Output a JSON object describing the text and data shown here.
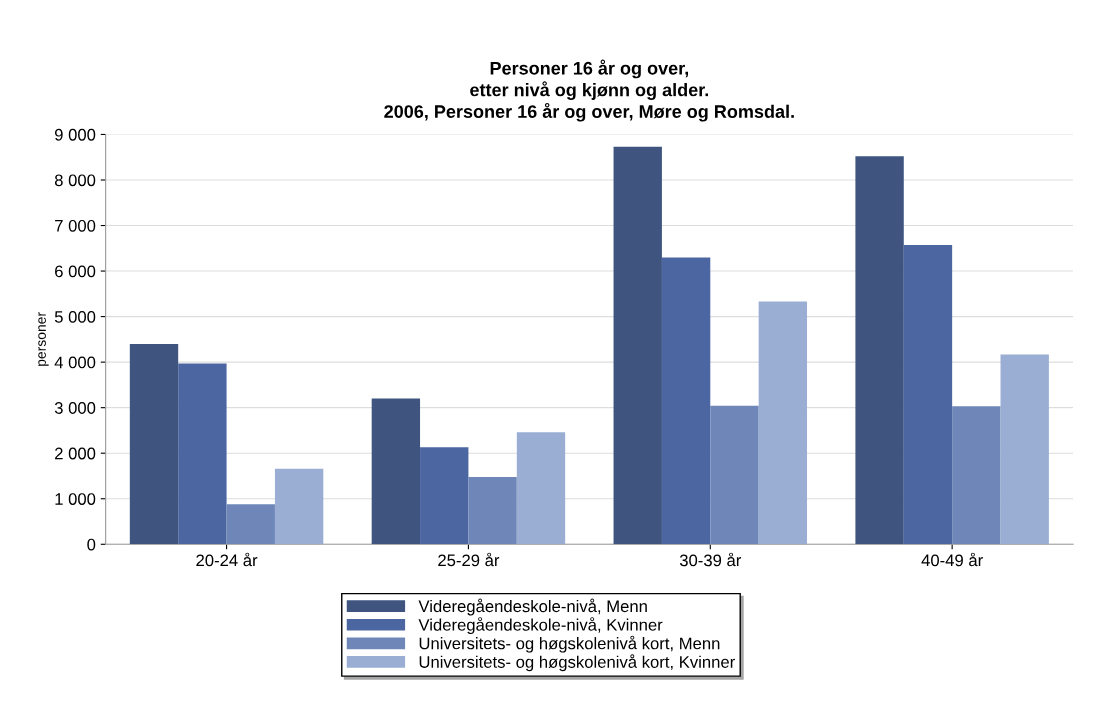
{
  "chart_data": {
    "type": "bar",
    "title": "Personer 16 år og over,\netter nivå og kjønn og alder.\n2006, Personer 16 år og over, Møre og Romsdal.",
    "ylabel": "personer",
    "categories": [
      "20-24 år",
      "25-29 år",
      "30-39 år",
      "40-49 år"
    ],
    "series": [
      {
        "name": "Videregåendeskole-nivå, Menn",
        "color": "#3f5580",
        "values": [
          4400,
          3200,
          8730,
          8520
        ]
      },
      {
        "name": "Videregåendeskole-nivå, Kvinner",
        "color": "#4b66a0",
        "values": [
          3970,
          2130,
          6300,
          6570
        ]
      },
      {
        "name": "Universitets- og høgskolenivå kort, Menn",
        "color": "#6e87b8",
        "values": [
          880,
          1480,
          3040,
          3030
        ]
      },
      {
        "name": "Universitets- og høgskolenivå kort, Kvinner",
        "color": "#9aaed4",
        "values": [
          1660,
          2460,
          5330,
          4170
        ]
      }
    ],
    "ylim": [
      0,
      9000
    ],
    "yticks": [
      {
        "value": 0,
        "label": "0"
      },
      {
        "value": 1000,
        "label": "1 000"
      },
      {
        "value": 2000,
        "label": "2 000"
      },
      {
        "value": 3000,
        "label": "3 000"
      },
      {
        "value": 4000,
        "label": "4 000"
      },
      {
        "value": 5000,
        "label": "5 000"
      },
      {
        "value": 6000,
        "label": "6 000"
      },
      {
        "value": 7000,
        "label": "7 000"
      },
      {
        "value": 8000,
        "label": "8 000"
      },
      {
        "value": 9000,
        "label": "9 000"
      }
    ],
    "grid": "y",
    "legend": "bottom"
  }
}
